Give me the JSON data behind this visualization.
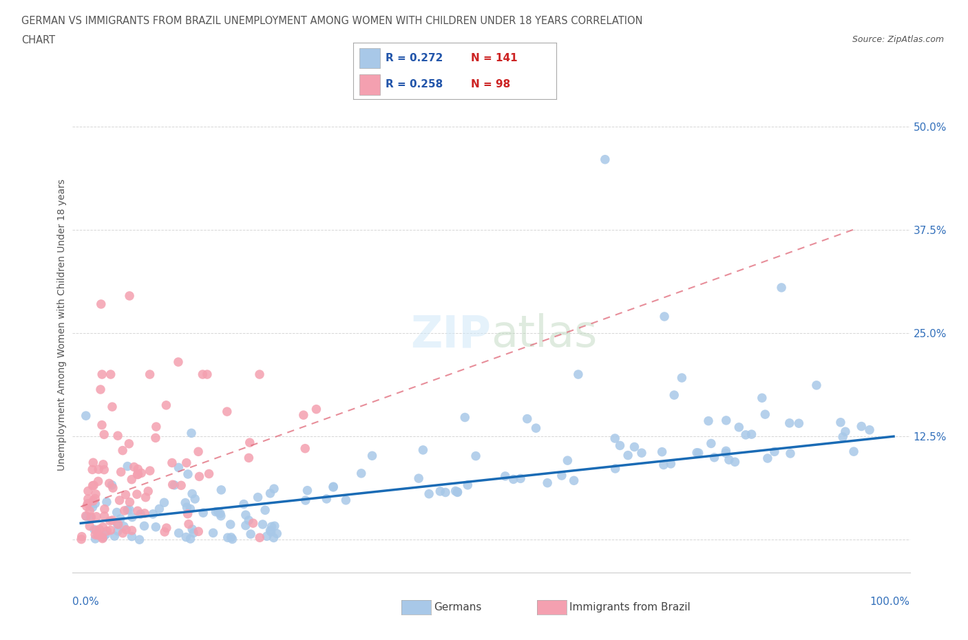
{
  "title_line1": "GERMAN VS IMMIGRANTS FROM BRAZIL UNEMPLOYMENT AMONG WOMEN WITH CHILDREN UNDER 18 YEARS CORRELATION",
  "title_line2": "CHART",
  "source": "Source: ZipAtlas.com",
  "ylabel": "Unemployment Among Women with Children Under 18 years",
  "german_R": 0.272,
  "german_N": 141,
  "brazil_R": 0.258,
  "brazil_N": 98,
  "german_color": "#a8c8e8",
  "brazil_color": "#f4a0b0",
  "german_line_color": "#1a6bb5",
  "brazil_line_color": "#e06878",
  "watermark_color": "#d0e8f8",
  "background_color": "#ffffff",
  "title_color": "#555555",
  "axis_label_color": "#3370bb",
  "legend_r_color": "#2255aa",
  "legend_n_color": "#cc2222",
  "ytick_vals": [
    0.0,
    0.125,
    0.25,
    0.375,
    0.5
  ],
  "ytick_labels": [
    "",
    "12.5%",
    "25.0%",
    "37.5%",
    "50.0%"
  ],
  "xlim": [
    -0.01,
    1.02
  ],
  "ylim": [
    -0.04,
    0.56
  ]
}
